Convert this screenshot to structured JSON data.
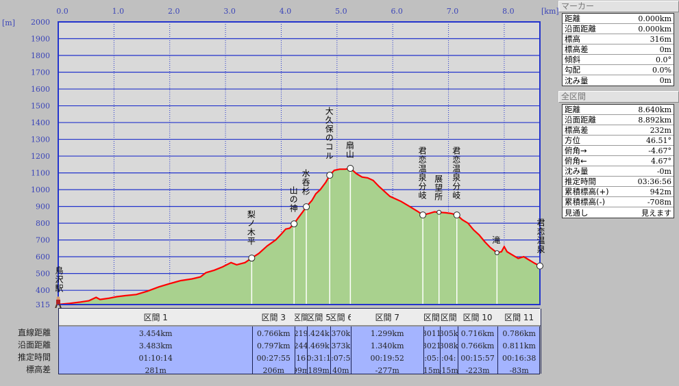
{
  "chart_data": {
    "type": "area",
    "xunit": "[km]",
    "yunit": "[m]",
    "xticks": [
      "0.0",
      "1.0",
      "2.0",
      "3.0",
      "4.0",
      "5.0",
      "6.0",
      "7.0",
      "8.0"
    ],
    "yticks": [
      "2000",
      "1900",
      "1800",
      "1700",
      "1600",
      "1500",
      "1400",
      "1300",
      "1200",
      "1100",
      "1000",
      "900",
      "800",
      "700",
      "600",
      "500",
      "400",
      "315"
    ],
    "xlim": [
      0,
      8.64
    ],
    "ylim": [
      315,
      2000
    ],
    "grid": true,
    "profile": [
      [
        0,
        316
      ],
      [
        0.2,
        322
      ],
      [
        0.4,
        330
      ],
      [
        0.55,
        338
      ],
      [
        0.68,
        358
      ],
      [
        0.75,
        345
      ],
      [
        0.9,
        352
      ],
      [
        1.05,
        362
      ],
      [
        1.2,
        368
      ],
      [
        1.4,
        375
      ],
      [
        1.6,
        395
      ],
      [
        1.8,
        420
      ],
      [
        2.0,
        440
      ],
      [
        2.2,
        458
      ],
      [
        2.4,
        468
      ],
      [
        2.55,
        480
      ],
      [
        2.65,
        505
      ],
      [
        2.8,
        520
      ],
      [
        2.95,
        540
      ],
      [
        3.1,
        565
      ],
      [
        3.2,
        552
      ],
      [
        3.35,
        565
      ],
      [
        3.47,
        592
      ],
      [
        3.6,
        620
      ],
      [
        3.75,
        665
      ],
      [
        3.9,
        700
      ],
      [
        4.0,
        735
      ],
      [
        4.08,
        765
      ],
      [
        4.15,
        770
      ],
      [
        4.23,
        796
      ],
      [
        4.3,
        830
      ],
      [
        4.38,
        865
      ],
      [
        4.45,
        898
      ],
      [
        4.55,
        935
      ],
      [
        4.62,
        975
      ],
      [
        4.7,
        1000
      ],
      [
        4.8,
        1045
      ],
      [
        4.87,
        1086
      ],
      [
        4.95,
        1115
      ],
      [
        5.05,
        1122
      ],
      [
        5.15,
        1122
      ],
      [
        5.24,
        1127
      ],
      [
        5.35,
        1095
      ],
      [
        5.45,
        1075
      ],
      [
        5.55,
        1070
      ],
      [
        5.65,
        1055
      ],
      [
        5.75,
        1020
      ],
      [
        5.85,
        990
      ],
      [
        5.95,
        960
      ],
      [
        6.05,
        945
      ],
      [
        6.15,
        930
      ],
      [
        6.3,
        900
      ],
      [
        6.45,
        870
      ],
      [
        6.54,
        849
      ],
      [
        6.65,
        858
      ],
      [
        6.75,
        868
      ],
      [
        6.83,
        865
      ],
      [
        6.95,
        862
      ],
      [
        7.05,
        858
      ],
      [
        7.15,
        849
      ],
      [
        7.25,
        820
      ],
      [
        7.35,
        800
      ],
      [
        7.45,
        760
      ],
      [
        7.55,
        730
      ],
      [
        7.65,
        690
      ],
      [
        7.75,
        655
      ],
      [
        7.87,
        624
      ],
      [
        7.95,
        630
      ],
      [
        8.0,
        660
      ],
      [
        8.05,
        630
      ],
      [
        8.15,
        610
      ],
      [
        8.25,
        590
      ],
      [
        8.35,
        600
      ],
      [
        8.45,
        580
      ],
      [
        8.55,
        560
      ],
      [
        8.64,
        545
      ]
    ],
    "markers": [
      {
        "name": "鳥沢駅",
        "km": 0,
        "m": 316,
        "type": "start"
      },
      {
        "name": "梨ノ木平",
        "km": 3.47,
        "m": 592,
        "type": "point"
      },
      {
        "name": "山の神",
        "km": 4.23,
        "m": 796,
        "type": "point"
      },
      {
        "name": "水呑杉",
        "km": 4.45,
        "m": 898,
        "type": "point"
      },
      {
        "name": "大久保のコル",
        "km": 4.87,
        "m": 1086,
        "type": "point"
      },
      {
        "name": "扇山",
        "km": 5.24,
        "m": 1127,
        "type": "point"
      },
      {
        "name": "君恋温泉分岐",
        "km": 6.54,
        "m": 849,
        "type": "point"
      },
      {
        "name": "展望所",
        "km": 6.83,
        "m": 865,
        "type": "small"
      },
      {
        "name": "君恋温泉分岐",
        "km": 7.15,
        "m": 849,
        "type": "point"
      },
      {
        "name": "滝",
        "km": 7.87,
        "m": 624,
        "type": "small"
      },
      {
        "name": "君恋温泉",
        "km": 8.64,
        "m": 545,
        "type": "point"
      }
    ]
  },
  "table": {
    "row_labels": [
      "直線距離",
      "沿面距離",
      "推定時間",
      "標高差"
    ],
    "sections": [
      {
        "label": "区間 1",
        "values": [
          "3.454km",
          "3.483km",
          "01:10:14",
          "281m"
        ]
      },
      {
        "label": "区間 3",
        "values": [
          "0.766km",
          "0.797km",
          "00:27:55",
          "206m"
        ]
      },
      {
        "label": "区間",
        "values": [
          "219",
          "244",
          "16",
          "99m"
        ]
      },
      {
        "label": "区間 5",
        "values": [
          ".424k",
          ".469k",
          "0:31:1",
          "189m"
        ]
      },
      {
        "label": "区間 6",
        "values": [
          "370k",
          "373k",
          ":07:5",
          "40m"
        ]
      },
      {
        "label": "区間 7",
        "values": [
          "1.299km",
          "1.340km",
          "00:19:52",
          "-277m"
        ]
      },
      {
        "label": "区間",
        "values": [
          "3011",
          "3021",
          ":05:",
          "15m"
        ]
      },
      {
        "label": "区間",
        "values": [
          "305k",
          "308k",
          ":04:",
          "-15m"
        ]
      },
      {
        "label": "区間 10",
        "values": [
          "0.716km",
          "0.766km",
          "00:15:57",
          "-223m"
        ]
      },
      {
        "label": "区間 11",
        "values": [
          "0.786km",
          "0.811km",
          "00:16:38",
          "-83m"
        ]
      }
    ]
  },
  "marker_panel": {
    "title": "マーカー",
    "rows": [
      {
        "k": "距離",
        "v": "0.000km"
      },
      {
        "k": "沿面距離",
        "v": "0.000km"
      },
      {
        "k": "標高",
        "v": "316m"
      },
      {
        "k": "標高差",
        "v": "0m"
      },
      {
        "k": "傾斜",
        "v": "0.0°"
      },
      {
        "k": "勾配",
        "v": "0.0%"
      },
      {
        "k": "沈み量",
        "v": "0m"
      }
    ]
  },
  "total_panel": {
    "title": "全区間",
    "rows": [
      {
        "k": "距離",
        "v": "8.640km"
      },
      {
        "k": "沿面距離",
        "v": "8.892km"
      },
      {
        "k": "標高差",
        "v": "232m"
      },
      {
        "k": "方位",
        "v": "46.51°"
      },
      {
        "k": "俯角→",
        "v": "-4.67°"
      },
      {
        "k": "俯角←",
        "v": "4.67°"
      },
      {
        "k": "沈み量",
        "v": "-0m"
      },
      {
        "k": "推定時間",
        "v": "03:36:56"
      },
      {
        "k": "累積標高(+)",
        "v": "942m"
      },
      {
        "k": "累積標高(-)",
        "v": "-708m"
      },
      {
        "k": "見通し",
        "v": "見えます"
      }
    ]
  },
  "colors": {
    "grid": "#2233cc",
    "fill": "#a9d18e",
    "line": "#ff0000",
    "plot_bg": "#d9d9d9",
    "axis_text": "#3a44b8",
    "table_body": "#a4b4ff"
  }
}
